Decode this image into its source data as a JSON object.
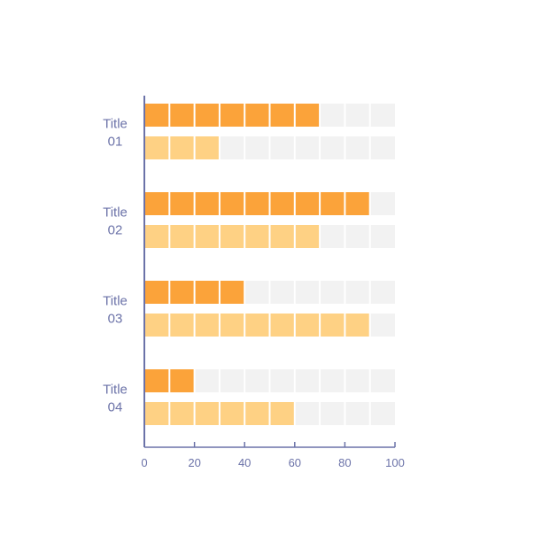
{
  "chart_data": {
    "type": "bar",
    "orientation": "horizontal",
    "categories": [
      {
        "line1": "Title",
        "line2": "01"
      },
      {
        "line1": "Title",
        "line2": "02"
      },
      {
        "line1": "Title",
        "line2": "03"
      },
      {
        "line1": "Title",
        "line2": "04"
      }
    ],
    "series": [
      {
        "values": [
          70,
          90,
          40,
          20
        ],
        "color": "#fba33a"
      },
      {
        "values": [
          30,
          70,
          90,
          60
        ],
        "color": "#fed184"
      }
    ],
    "track_color": "#f2f2f2",
    "segment_step": 10,
    "xlim": [
      0,
      100
    ],
    "xticks": [
      "0",
      "20",
      "40",
      "60",
      "80",
      "100"
    ],
    "axis_color": "#6b72a8",
    "grid": false,
    "legend": false
  }
}
